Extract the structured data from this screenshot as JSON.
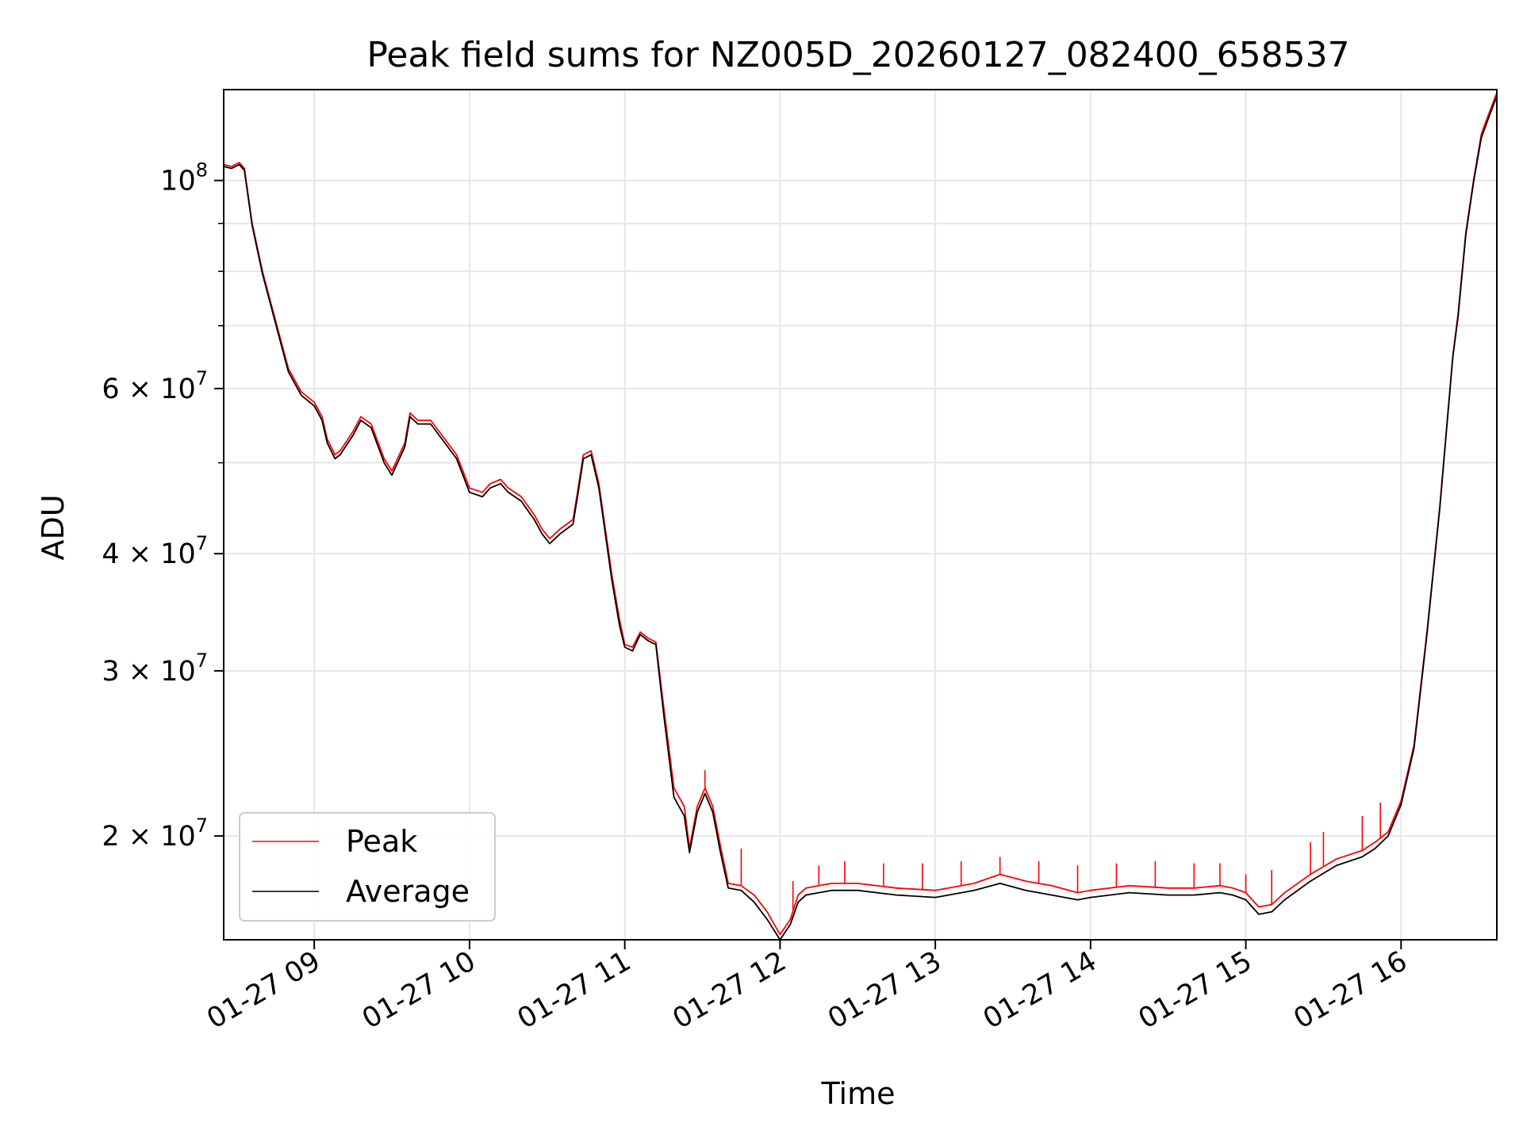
{
  "chart_data": {
    "type": "line",
    "title": "Peak field sums for NZ005D_20260127_082400_658537",
    "xlabel": "Time",
    "ylabel": "ADU",
    "yscale": "log",
    "ylim": [
      15500000,
      125000000
    ],
    "xlim": [
      "2026-01-27 08:25",
      "2026-01-27 16:37"
    ],
    "grid": true,
    "legend": "lower-left",
    "x_ticks": [
      {
        "value": "2026-01-27 09:00",
        "label": "01-27 09"
      },
      {
        "value": "2026-01-27 10:00",
        "label": "01-27 10"
      },
      {
        "value": "2026-01-27 11:00",
        "label": "01-27 11"
      },
      {
        "value": "2026-01-27 12:00",
        "label": "01-27 12"
      },
      {
        "value": "2026-01-27 13:00",
        "label": "01-27 13"
      },
      {
        "value": "2026-01-27 14:00",
        "label": "01-27 14"
      },
      {
        "value": "2026-01-27 15:00",
        "label": "01-27 15"
      },
      {
        "value": "2026-01-27 16:00",
        "label": "01-27 16"
      }
    ],
    "y_ticks": [
      {
        "value": 20000000,
        "mant": "2",
        "exp": "7"
      },
      {
        "value": 30000000,
        "mant": "3",
        "exp": "7"
      },
      {
        "value": 40000000,
        "mant": "4",
        "exp": "7"
      },
      {
        "value": 60000000,
        "mant": "6",
        "exp": "7"
      },
      {
        "value": 100000000,
        "mant": "",
        "exp": "8"
      }
    ],
    "y_minor_ticks": [
      50000000,
      70000000,
      80000000,
      90000000
    ],
    "series": [
      {
        "name": "Peak",
        "color": "#ff0000",
        "x": [
          "2026-01-27 08:25",
          "2026-01-27 08:28",
          "2026-01-27 08:31",
          "2026-01-27 08:33",
          "2026-01-27 08:36",
          "2026-01-27 08:40",
          "2026-01-27 08:45",
          "2026-01-27 08:50",
          "2026-01-27 08:55",
          "2026-01-27 09:00",
          "2026-01-27 09:03",
          "2026-01-27 09:05",
          "2026-01-27 09:08",
          "2026-01-27 09:10",
          "2026-01-27 09:15",
          "2026-01-27 09:18",
          "2026-01-27 09:22",
          "2026-01-27 09:27",
          "2026-01-27 09:30",
          "2026-01-27 09:35",
          "2026-01-27 09:37",
          "2026-01-27 09:40",
          "2026-01-27 09:45",
          "2026-01-27 09:55",
          "2026-01-27 10:00",
          "2026-01-27 10:05",
          "2026-01-27 10:08",
          "2026-01-27 10:12",
          "2026-01-27 10:15",
          "2026-01-27 10:20",
          "2026-01-27 10:25",
          "2026-01-27 10:28",
          "2026-01-27 10:31",
          "2026-01-27 10:35",
          "2026-01-27 10:40",
          "2026-01-27 10:42",
          "2026-01-27 10:44",
          "2026-01-27 10:47",
          "2026-01-27 10:50",
          "2026-01-27 10:55",
          "2026-01-27 10:58",
          "2026-01-27 11:00",
          "2026-01-27 11:03",
          "2026-01-27 11:06",
          "2026-01-27 11:09",
          "2026-01-27 11:12",
          "2026-01-27 11:15",
          "2026-01-27 11:19",
          "2026-01-27 11:23",
          "2026-01-27 11:25",
          "2026-01-27 11:28",
          "2026-01-27 11:31",
          "2026-01-27 11:34",
          "2026-01-27 11:37",
          "2026-01-27 11:40",
          "2026-01-27 11:45",
          "2026-01-27 11:50",
          "2026-01-27 11:55",
          "2026-01-27 12:00",
          "2026-01-27 12:04",
          "2026-01-27 12:07",
          "2026-01-27 12:10",
          "2026-01-27 12:15",
          "2026-01-27 12:20",
          "2026-01-27 12:30",
          "2026-01-27 12:45",
          "2026-01-27 13:00",
          "2026-01-27 13:15",
          "2026-01-27 13:25",
          "2026-01-27 13:35",
          "2026-01-27 13:45",
          "2026-01-27 13:55",
          "2026-01-27 14:00",
          "2026-01-27 14:15",
          "2026-01-27 14:30",
          "2026-01-27 14:40",
          "2026-01-27 14:50",
          "2026-01-27 14:55",
          "2026-01-27 15:00",
          "2026-01-27 15:05",
          "2026-01-27 15:10",
          "2026-01-27 15:15",
          "2026-01-27 15:25",
          "2026-01-27 15:35",
          "2026-01-27 15:45",
          "2026-01-27 15:50",
          "2026-01-27 15:55",
          "2026-01-27 16:00",
          "2026-01-27 16:05",
          "2026-01-27 16:10",
          "2026-01-27 16:15",
          "2026-01-27 16:20",
          "2026-01-27 16:22",
          "2026-01-27 16:25",
          "2026-01-27 16:28",
          "2026-01-27 16:31",
          "2026-01-27 16:34",
          "2026-01-27 16:37"
        ],
        "values": [
          104000000,
          103500000,
          104500000,
          103000000,
          90000000,
          80000000,
          71000000,
          63000000,
          59500000,
          58000000,
          56000000,
          53000000,
          51000000,
          51500000,
          54000000,
          56000000,
          55000000,
          50500000,
          49000000,
          52500000,
          56500000,
          55500000,
          55500000,
          51000000,
          47000000,
          46500000,
          47500000,
          48000000,
          47000000,
          46000000,
          44000000,
          42500000,
          41500000,
          42500000,
          43500000,
          47000000,
          51000000,
          51500000,
          47500000,
          38000000,
          34000000,
          32000000,
          31800000,
          33000000,
          32500000,
          32200000,
          27500000,
          22500000,
          21500000,
          19400000,
          21500000,
          22500000,
          21500000,
          19500000,
          17800000,
          17700000,
          17300000,
          16600000,
          15700000,
          16300000,
          17300000,
          17600000,
          17700000,
          17800000,
          17800000,
          17600000,
          17500000,
          17800000,
          18200000,
          17900000,
          17700000,
          17400000,
          17500000,
          17700000,
          17600000,
          17600000,
          17700000,
          17600000,
          17400000,
          16800000,
          16900000,
          17400000,
          18200000,
          18900000,
          19300000,
          19700000,
          20200000,
          21800000,
          25000000,
          33000000,
          45000000,
          65000000,
          72000000,
          88000000,
          100000000,
          112000000,
          118000000,
          124000000
        ],
        "spikes": [
          {
            "x": "2026-01-27 11:31",
            "value": 23500000
          },
          {
            "x": "2026-01-27 11:45",
            "value": 19400000
          },
          {
            "x": "2026-01-27 12:05",
            "value": 17900000
          },
          {
            "x": "2026-01-27 12:15",
            "value": 18600000
          },
          {
            "x": "2026-01-27 12:25",
            "value": 18800000
          },
          {
            "x": "2026-01-27 12:40",
            "value": 18700000
          },
          {
            "x": "2026-01-27 12:55",
            "value": 18700000
          },
          {
            "x": "2026-01-27 13:10",
            "value": 18800000
          },
          {
            "x": "2026-01-27 13:25",
            "value": 19000000
          },
          {
            "x": "2026-01-27 13:40",
            "value": 18800000
          },
          {
            "x": "2026-01-27 13:55",
            "value": 18600000
          },
          {
            "x": "2026-01-27 14:10",
            "value": 18700000
          },
          {
            "x": "2026-01-27 14:25",
            "value": 18800000
          },
          {
            "x": "2026-01-27 14:40",
            "value": 18700000
          },
          {
            "x": "2026-01-27 14:50",
            "value": 18700000
          },
          {
            "x": "2026-01-27 15:00",
            "value": 18200000
          },
          {
            "x": "2026-01-27 15:10",
            "value": 18400000
          },
          {
            "x": "2026-01-27 15:25",
            "value": 19700000
          },
          {
            "x": "2026-01-27 15:30",
            "value": 20200000
          },
          {
            "x": "2026-01-27 15:45",
            "value": 21000000
          },
          {
            "x": "2026-01-27 15:52",
            "value": 21700000
          }
        ]
      },
      {
        "name": "Average",
        "color": "#000000",
        "x": [
          "2026-01-27 08:25",
          "2026-01-27 08:28",
          "2026-01-27 08:31",
          "2026-01-27 08:33",
          "2026-01-27 08:36",
          "2026-01-27 08:40",
          "2026-01-27 08:45",
          "2026-01-27 08:50",
          "2026-01-27 08:55",
          "2026-01-27 09:00",
          "2026-01-27 09:03",
          "2026-01-27 09:05",
          "2026-01-27 09:08",
          "2026-01-27 09:10",
          "2026-01-27 09:15",
          "2026-01-27 09:18",
          "2026-01-27 09:22",
          "2026-01-27 09:27",
          "2026-01-27 09:30",
          "2026-01-27 09:35",
          "2026-01-27 09:37",
          "2026-01-27 09:40",
          "2026-01-27 09:45",
          "2026-01-27 09:55",
          "2026-01-27 10:00",
          "2026-01-27 10:05",
          "2026-01-27 10:08",
          "2026-01-27 10:12",
          "2026-01-27 10:15",
          "2026-01-27 10:20",
          "2026-01-27 10:25",
          "2026-01-27 10:28",
          "2026-01-27 10:31",
          "2026-01-27 10:35",
          "2026-01-27 10:40",
          "2026-01-27 10:42",
          "2026-01-27 10:44",
          "2026-01-27 10:47",
          "2026-01-27 10:50",
          "2026-01-27 10:55",
          "2026-01-27 10:58",
          "2026-01-27 11:00",
          "2026-01-27 11:03",
          "2026-01-27 11:06",
          "2026-01-27 11:09",
          "2026-01-27 11:12",
          "2026-01-27 11:15",
          "2026-01-27 11:19",
          "2026-01-27 11:23",
          "2026-01-27 11:25",
          "2026-01-27 11:28",
          "2026-01-27 11:31",
          "2026-01-27 11:34",
          "2026-01-27 11:37",
          "2026-01-27 11:40",
          "2026-01-27 11:45",
          "2026-01-27 11:50",
          "2026-01-27 11:55",
          "2026-01-27 12:00",
          "2026-01-27 12:04",
          "2026-01-27 12:07",
          "2026-01-27 12:10",
          "2026-01-27 12:15",
          "2026-01-27 12:20",
          "2026-01-27 12:30",
          "2026-01-27 12:45",
          "2026-01-27 13:00",
          "2026-01-27 13:15",
          "2026-01-27 13:25",
          "2026-01-27 13:35",
          "2026-01-27 13:45",
          "2026-01-27 13:55",
          "2026-01-27 14:00",
          "2026-01-27 14:15",
          "2026-01-27 14:30",
          "2026-01-27 14:40",
          "2026-01-27 14:50",
          "2026-01-27 14:55",
          "2026-01-27 15:00",
          "2026-01-27 15:05",
          "2026-01-27 15:10",
          "2026-01-27 15:15",
          "2026-01-27 15:25",
          "2026-01-27 15:35",
          "2026-01-27 15:45",
          "2026-01-27 15:50",
          "2026-01-27 15:55",
          "2026-01-27 16:00",
          "2026-01-27 16:05",
          "2026-01-27 16:10",
          "2026-01-27 16:15",
          "2026-01-27 16:20",
          "2026-01-27 16:22",
          "2026-01-27 16:25",
          "2026-01-27 16:28",
          "2026-01-27 16:31",
          "2026-01-27 16:34",
          "2026-01-27 16:37"
        ],
        "values": [
          103500000,
          103000000,
          104000000,
          102500000,
          89500000,
          79500000,
          70500000,
          62500000,
          59000000,
          57500000,
          55500000,
          52500000,
          50500000,
          51000000,
          53500000,
          55500000,
          54500000,
          50000000,
          48500000,
          52000000,
          56000000,
          55000000,
          55000000,
          50500000,
          46500000,
          46000000,
          47000000,
          47500000,
          46500000,
          45500000,
          43500000,
          42000000,
          41000000,
          42000000,
          43000000,
          46500000,
          50500000,
          51000000,
          47000000,
          37500000,
          33500000,
          31800000,
          31500000,
          32800000,
          32300000,
          32000000,
          27000000,
          22000000,
          21000000,
          19200000,
          21200000,
          22200000,
          21200000,
          19200000,
          17600000,
          17500000,
          17000000,
          16300000,
          15500000,
          16100000,
          17000000,
          17300000,
          17400000,
          17500000,
          17500000,
          17300000,
          17200000,
          17500000,
          17800000,
          17500000,
          17300000,
          17100000,
          17200000,
          17400000,
          17300000,
          17300000,
          17400000,
          17300000,
          17100000,
          16500000,
          16600000,
          17100000,
          17900000,
          18600000,
          19000000,
          19400000,
          20000000,
          21600000,
          24800000,
          32800000,
          44800000,
          64800000,
          71500000,
          87500000,
          99500000,
          111000000,
          117000000,
          123000000
        ]
      }
    ]
  }
}
